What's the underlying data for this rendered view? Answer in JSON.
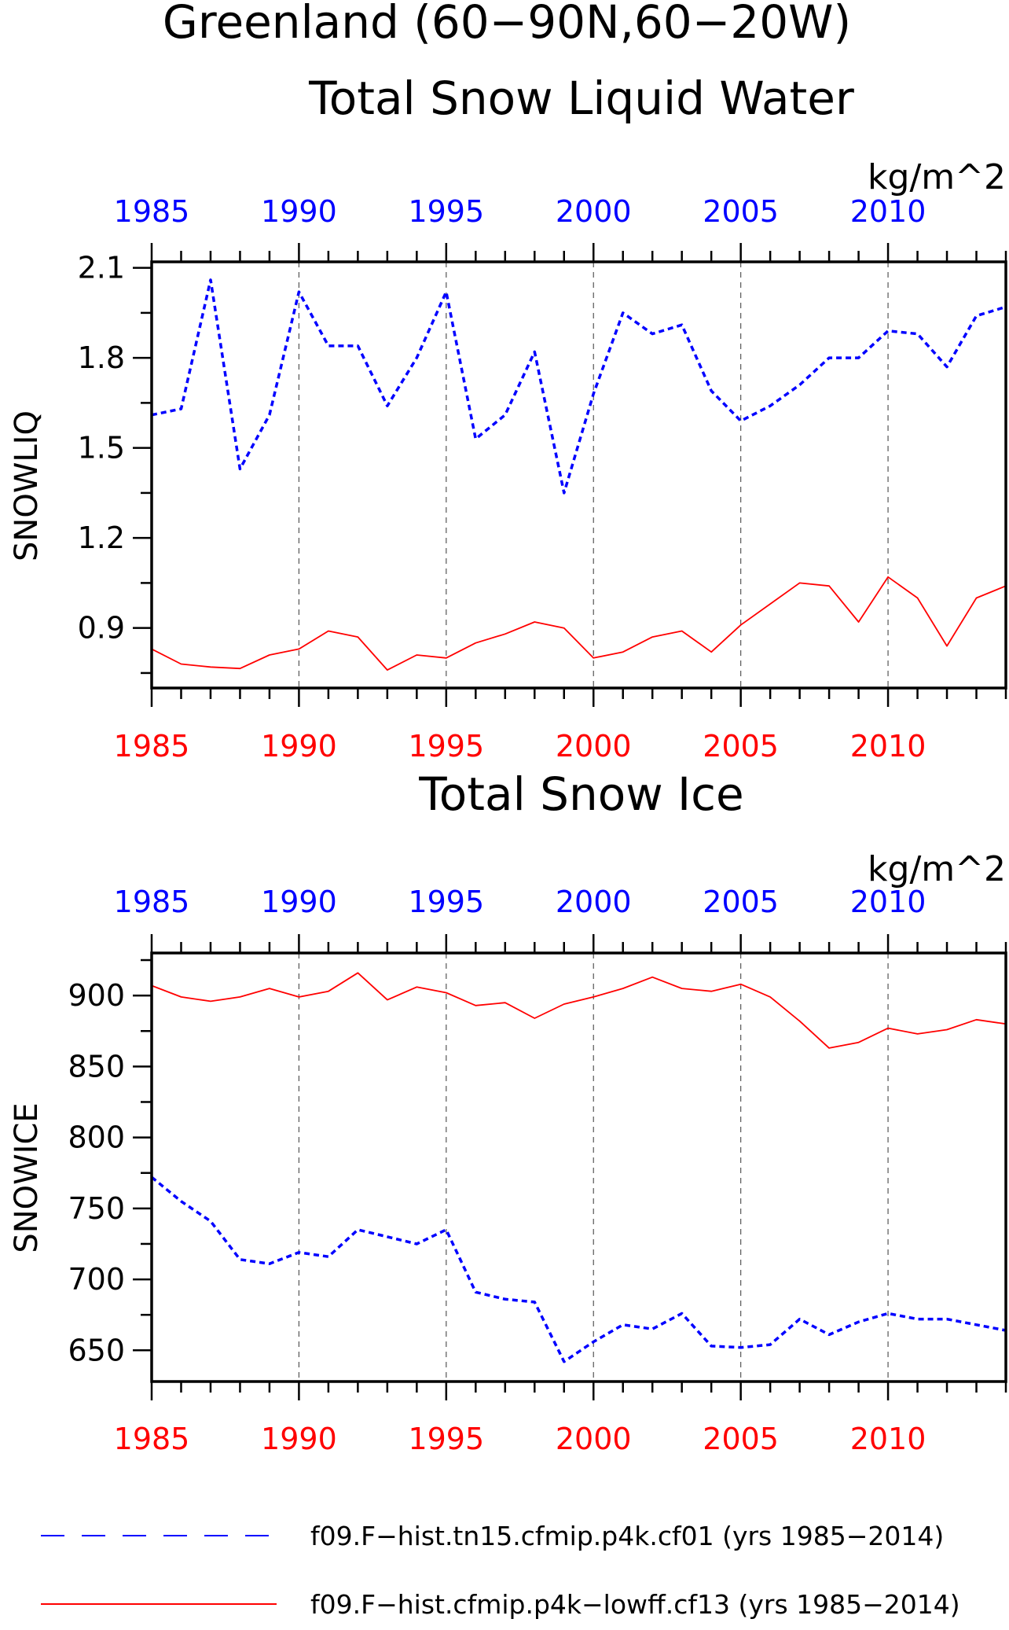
{
  "figure": {
    "title_line1": "Greenland (60−90N,60−20W)",
    "units": "kg/m^2"
  },
  "legend": {
    "entries": [
      {
        "label": "f09.F−hist.tn15.cfmip.p4k.cf01 (yrs 1985−2014)",
        "color": "#0000ff",
        "style": "dashed"
      },
      {
        "label": "f09.F−hist.cfmip.p4k−lowff.cf13 (yrs 1985−2014)",
        "color": "#ff0000",
        "style": "solid"
      }
    ]
  },
  "chart_data": [
    {
      "type": "line",
      "title": "Total Snow Liquid Water",
      "ylabel": "SNOWLIQ",
      "units": "kg/m^2",
      "xlim": [
        1985,
        2014
      ],
      "ylim": [
        0.7,
        2.12
      ],
      "yticks": [
        0.9,
        1.2,
        1.5,
        1.8,
        2.1
      ],
      "ytick_labels": [
        "0.9",
        "1.2",
        "1.5",
        "1.8",
        "2.1"
      ],
      "xticks": [
        1985,
        1990,
        1995,
        2000,
        2005,
        2010
      ],
      "xtick_labels": [
        "1985",
        "1990",
        "1995",
        "2000",
        "2005",
        "2010"
      ],
      "grid": "vertical dashed at major x ticks",
      "x": [
        1985,
        1986,
        1987,
        1988,
        1989,
        1990,
        1991,
        1992,
        1993,
        1994,
        1995,
        1996,
        1997,
        1998,
        1999,
        2000,
        2001,
        2002,
        2003,
        2004,
        2005,
        2006,
        2007,
        2008,
        2009,
        2010,
        2011,
        2012,
        2013,
        2014
      ],
      "series": [
        {
          "color": "#0000ff",
          "style": "dashed",
          "values": [
            1.61,
            1.63,
            2.06,
            1.43,
            1.61,
            2.02,
            1.84,
            1.84,
            1.64,
            1.8,
            2.02,
            1.53,
            1.61,
            1.82,
            1.35,
            1.68,
            1.95,
            1.88,
            1.91,
            1.69,
            1.59,
            1.64,
            1.71,
            1.8,
            1.8,
            1.89,
            1.88,
            1.77,
            1.94,
            1.97
          ]
        },
        {
          "color": "#ff0000",
          "style": "solid",
          "values": [
            0.83,
            0.78,
            0.77,
            0.765,
            0.81,
            0.83,
            0.89,
            0.87,
            0.76,
            0.81,
            0.8,
            0.85,
            0.88,
            0.92,
            0.9,
            0.8,
            0.82,
            0.87,
            0.89,
            0.82,
            0.91,
            0.98,
            1.05,
            1.04,
            0.92,
            1.07,
            1.0,
            0.84,
            1.0,
            1.04
          ]
        }
      ]
    },
    {
      "type": "line",
      "title": "Total Snow Ice",
      "ylabel": "SNOWICE",
      "units": "kg/m^2",
      "xlim": [
        1985,
        2014
      ],
      "ylim": [
        628,
        930
      ],
      "yticks": [
        650,
        700,
        750,
        800,
        850,
        900
      ],
      "ytick_labels": [
        "650",
        "700",
        "750",
        "800",
        "850",
        "900"
      ],
      "xticks": [
        1985,
        1990,
        1995,
        2000,
        2005,
        2010
      ],
      "xtick_labels": [
        "1985",
        "1990",
        "1995",
        "2000",
        "2005",
        "2010"
      ],
      "grid": "vertical dashed at major x ticks",
      "x": [
        1985,
        1986,
        1987,
        1988,
        1989,
        1990,
        1991,
        1992,
        1993,
        1994,
        1995,
        1996,
        1997,
        1998,
        1999,
        2000,
        2001,
        2002,
        2003,
        2004,
        2005,
        2006,
        2007,
        2008,
        2009,
        2010,
        2011,
        2012,
        2013,
        2014
      ],
      "series": [
        {
          "color": "#0000ff",
          "style": "dashed",
          "values": [
            772,
            755,
            741,
            714,
            711,
            719,
            716,
            735,
            730,
            725,
            735,
            691,
            686,
            684,
            642,
            656,
            668,
            665,
            676,
            653,
            652,
            654,
            672,
            661,
            670,
            676,
            672,
            672,
            668,
            664
          ]
        },
        {
          "color": "#ff0000",
          "style": "solid",
          "values": [
            907,
            899,
            896,
            899,
            905,
            899,
            903,
            916,
            897,
            906,
            902,
            893,
            895,
            884,
            894,
            899,
            905,
            913,
            905,
            903,
            908,
            899,
            882,
            863,
            867,
            877,
            873,
            876,
            883,
            880
          ]
        }
      ]
    }
  ]
}
